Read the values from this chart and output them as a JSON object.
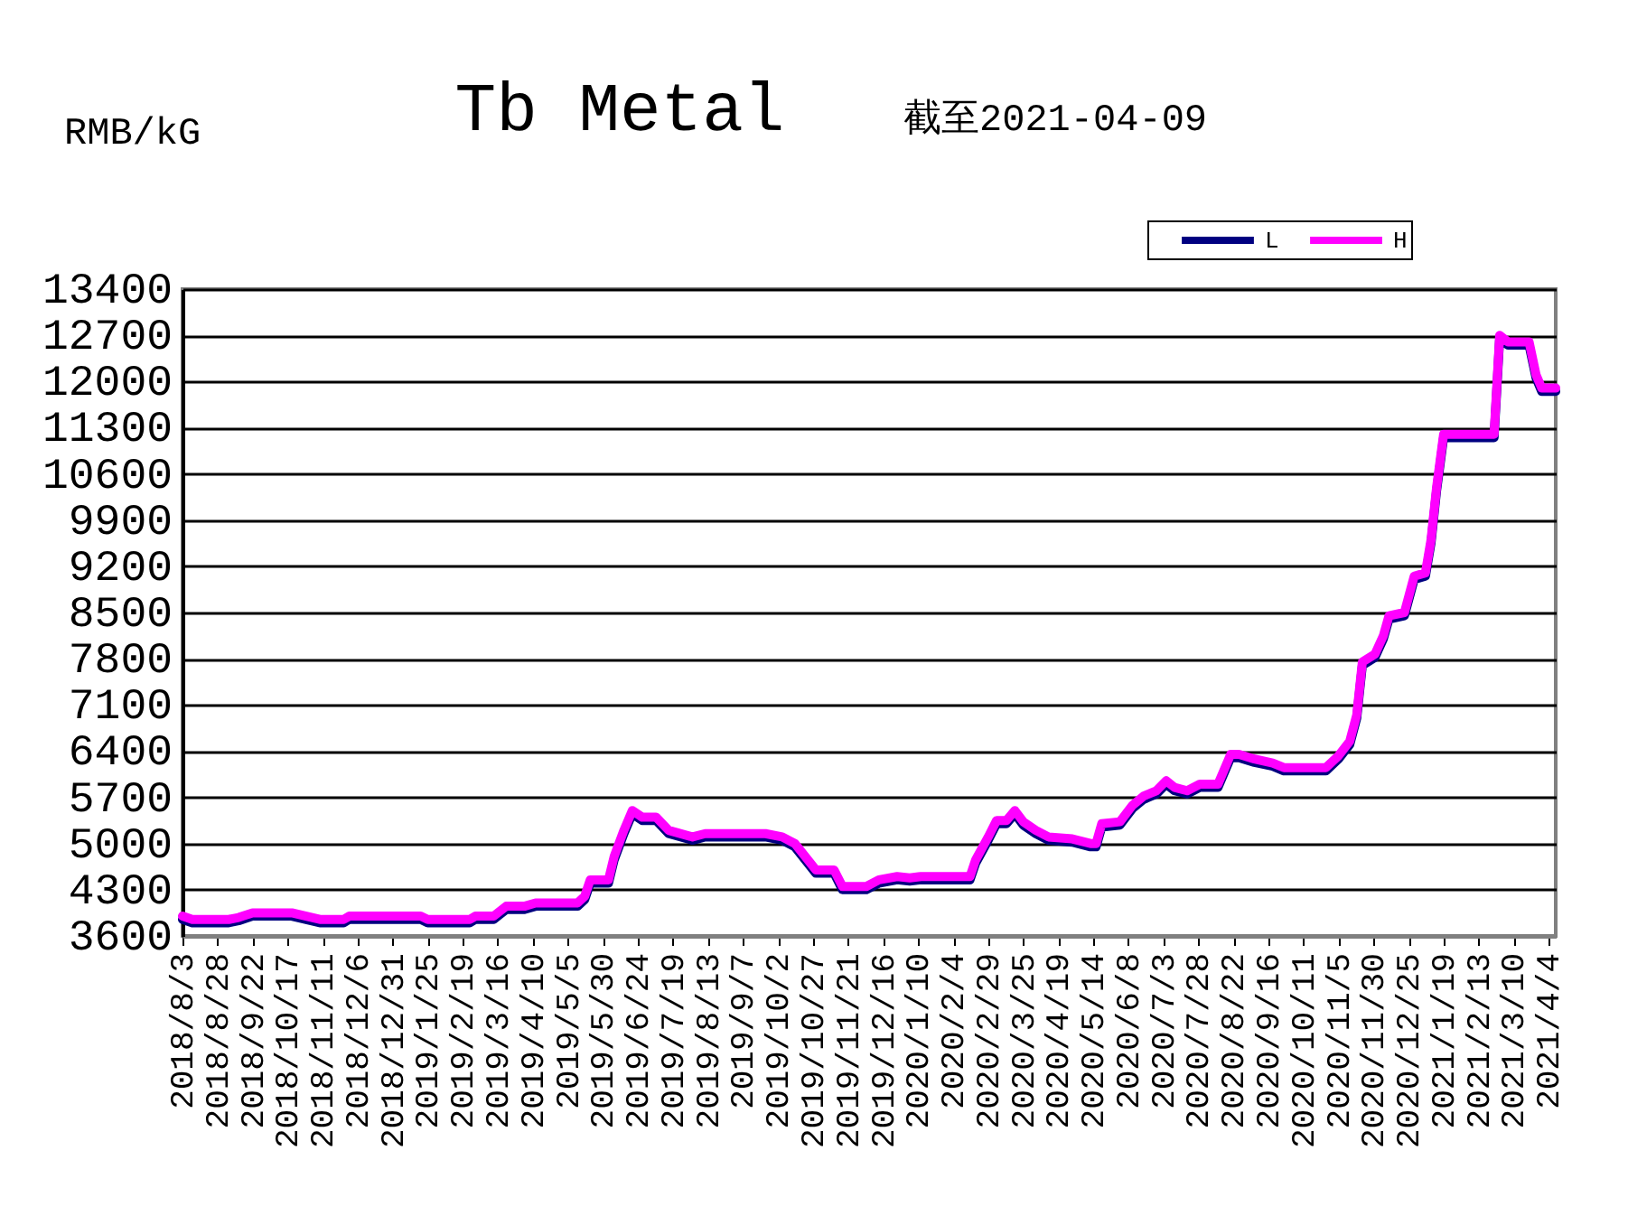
{
  "chart_data": {
    "type": "line",
    "title": "Tb Metal",
    "subtitle": "截至2021-04-09",
    "ylabel": "RMB/kG",
    "xlim": [
      "2018-08-03",
      "2021-04-09"
    ],
    "xticks": [
      {
        "value": "2018-08-03",
        "label": "2018/8/3"
      },
      {
        "value": "2018-08-28",
        "label": "2018/8/28"
      },
      {
        "value": "2018-09-22",
        "label": "2018/9/22"
      },
      {
        "value": "2018-10-17",
        "label": "2018/10/17"
      },
      {
        "value": "2018-11-11",
        "label": "2018/11/11"
      },
      {
        "value": "2018-12-06",
        "label": "2018/12/6"
      },
      {
        "value": "2018-12-31",
        "label": "2018/12/31"
      },
      {
        "value": "2019-01-25",
        "label": "2019/1/25"
      },
      {
        "value": "2019-02-19",
        "label": "2019/2/19"
      },
      {
        "value": "2019-03-16",
        "label": "2019/3/16"
      },
      {
        "value": "2019-04-10",
        "label": "2019/4/10"
      },
      {
        "value": "2019-05-05",
        "label": "2019/5/5"
      },
      {
        "value": "2019-05-30",
        "label": "2019/5/30"
      },
      {
        "value": "2019-06-24",
        "label": "2019/6/24"
      },
      {
        "value": "2019-07-19",
        "label": "2019/7/19"
      },
      {
        "value": "2019-08-13",
        "label": "2019/8/13"
      },
      {
        "value": "2019-09-07",
        "label": "2019/9/7"
      },
      {
        "value": "2019-10-02",
        "label": "2019/10/2"
      },
      {
        "value": "2019-10-27",
        "label": "2019/10/27"
      },
      {
        "value": "2019-11-21",
        "label": "2019/11/21"
      },
      {
        "value": "2019-12-16",
        "label": "2019/12/16"
      },
      {
        "value": "2020-01-10",
        "label": "2020/1/10"
      },
      {
        "value": "2020-02-04",
        "label": "2020/2/4"
      },
      {
        "value": "2020-02-29",
        "label": "2020/2/29"
      },
      {
        "value": "2020-03-25",
        "label": "2020/3/25"
      },
      {
        "value": "2020-04-19",
        "label": "2020/4/19"
      },
      {
        "value": "2020-05-14",
        "label": "2020/5/14"
      },
      {
        "value": "2020-06-08",
        "label": "2020/6/8"
      },
      {
        "value": "2020-07-03",
        "label": "2020/7/3"
      },
      {
        "value": "2020-07-28",
        "label": "2020/7/28"
      },
      {
        "value": "2020-08-22",
        "label": "2020/8/22"
      },
      {
        "value": "2020-09-16",
        "label": "2020/9/16"
      },
      {
        "value": "2020-10-11",
        "label": "2020/10/11"
      },
      {
        "value": "2020-11-05",
        "label": "2020/11/5"
      },
      {
        "value": "2020-11-30",
        "label": "2020/11/30"
      },
      {
        "value": "2020-12-25",
        "label": "2020/12/25"
      },
      {
        "value": "2021-01-19",
        "label": "2021/1/19"
      },
      {
        "value": "2021-02-13",
        "label": "2021/2/13"
      },
      {
        "value": "2021-03-10",
        "label": "2021/3/10"
      },
      {
        "value": "2021-04-04",
        "label": "2021/4/4"
      }
    ],
    "ylim": [
      3600,
      13400
    ],
    "yticks": [
      3600,
      4300,
      5000,
      5700,
      6400,
      7100,
      7800,
      8500,
      9200,
      9900,
      10600,
      11300,
      12000,
      12700,
      13400
    ],
    "grid": "y",
    "legend": "top right",
    "x": [
      "2018-08-03",
      "2018-08-10",
      "2018-09-05",
      "2018-09-12",
      "2018-09-22",
      "2018-10-20",
      "2018-11-09",
      "2018-11-26",
      "2018-11-30",
      "2019-01-20",
      "2019-01-25",
      "2019-02-24",
      "2019-02-28",
      "2019-03-13",
      "2019-03-22",
      "2019-04-04",
      "2019-04-12",
      "2019-05-12",
      "2019-05-17",
      "2019-05-21",
      "2019-06-03",
      "2019-06-07",
      "2019-06-14",
      "2019-06-20",
      "2019-06-27",
      "2019-07-07",
      "2019-07-16",
      "2019-08-02",
      "2019-08-11",
      "2019-09-23",
      "2019-10-05",
      "2019-10-14",
      "2019-10-29",
      "2019-11-11",
      "2019-11-17",
      "2019-12-04",
      "2019-12-13",
      "2019-12-26",
      "2020-01-04",
      "2020-01-12",
      "2020-02-16",
      "2020-02-20",
      "2020-02-29",
      "2020-03-06",
      "2020-03-13",
      "2020-03-19",
      "2020-03-25",
      "2020-04-03",
      "2020-04-12",
      "2020-04-29",
      "2020-05-12",
      "2020-05-16",
      "2020-05-20",
      "2020-06-02",
      "2020-06-11",
      "2020-06-19",
      "2020-06-28",
      "2020-07-05",
      "2020-07-11",
      "2020-07-20",
      "2020-07-29",
      "2020-08-11",
      "2020-08-20",
      "2020-08-26",
      "2020-09-06",
      "2020-09-19",
      "2020-09-27",
      "2020-10-27",
      "2020-11-05",
      "2020-11-13",
      "2020-11-18",
      "2020-11-22",
      "2020-12-01",
      "2020-12-07",
      "2020-12-11",
      "2020-12-22",
      "2020-12-29",
      "2021-01-06",
      "2021-01-10",
      "2021-01-14",
      "2021-01-19",
      "2021-02-24",
      "2021-02-28",
      "2021-03-06",
      "2021-03-21",
      "2021-03-26",
      "2021-03-30",
      "2021-04-09"
    ],
    "series": [
      {
        "name": "L",
        "color": "#000080",
        "values": [
          3850,
          3800,
          3800,
          3830,
          3900,
          3900,
          3800,
          3800,
          3850,
          3850,
          3800,
          3800,
          3850,
          3850,
          4000,
          4000,
          4050,
          4050,
          4150,
          4400,
          4400,
          4750,
          5150,
          5450,
          5350,
          5350,
          5150,
          5050,
          5100,
          5100,
          5050,
          4950,
          4550,
          4550,
          4300,
          4300,
          4400,
          4450,
          4430,
          4450,
          4450,
          4700,
          5050,
          5300,
          5300,
          5450,
          5280,
          5150,
          5050,
          5020,
          4950,
          4950,
          5250,
          5280,
          5530,
          5670,
          5750,
          5900,
          5800,
          5750,
          5850,
          5850,
          6300,
          6300,
          6230,
          6170,
          6100,
          6100,
          6280,
          6500,
          6900,
          7700,
          7820,
          8100,
          8400,
          8450,
          9000,
          9050,
          9550,
          10350,
          11150,
          11150,
          12650,
          12550,
          12550,
          12050,
          11850,
          11850
        ]
      },
      {
        "name": "H",
        "color": "#ff00ff",
        "values": [
          3900,
          3850,
          3850,
          3880,
          3950,
          3950,
          3850,
          3850,
          3900,
          3900,
          3850,
          3850,
          3900,
          3900,
          4050,
          4050,
          4100,
          4100,
          4200,
          4450,
          4450,
          4800,
          5200,
          5500,
          5400,
          5400,
          5200,
          5100,
          5150,
          5150,
          5100,
          5000,
          4600,
          4600,
          4350,
          4350,
          4450,
          4500,
          4480,
          4500,
          4500,
          4750,
          5100,
          5350,
          5350,
          5500,
          5330,
          5200,
          5100,
          5070,
          5000,
          5000,
          5300,
          5330,
          5580,
          5720,
          5800,
          5950,
          5850,
          5800,
          5900,
          5900,
          6350,
          6350,
          6280,
          6220,
          6150,
          6150,
          6330,
          6550,
          6950,
          7750,
          7870,
          8150,
          8450,
          8500,
          9050,
          9100,
          9600,
          10400,
          11200,
          11200,
          12700,
          12600,
          12600,
          12100,
          11900,
          11900
        ]
      }
    ]
  }
}
